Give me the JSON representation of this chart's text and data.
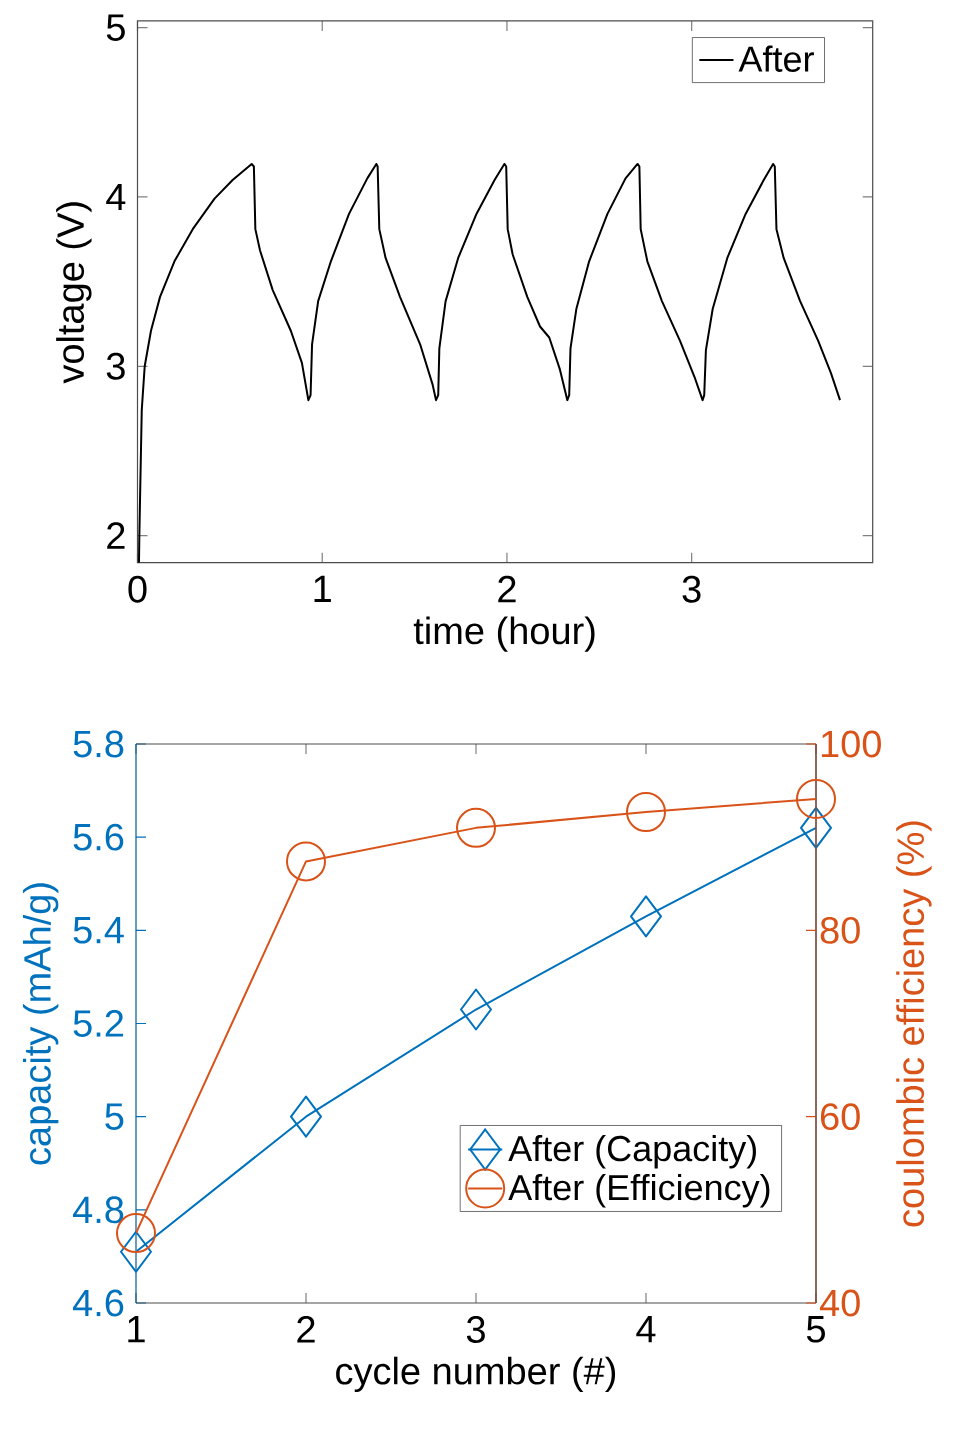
{
  "chart_data": [
    {
      "type": "line",
      "xlabel": "time (hour)",
      "ylabel": "voltage (V)",
      "xlim": [
        0,
        3.98
      ],
      "ylim": [
        1.84,
        5.04
      ],
      "xticks": [
        0,
        1,
        2,
        3
      ],
      "yticks": [
        2,
        3,
        4,
        5
      ],
      "legend": "top right",
      "x": [
        0.008,
        0.01,
        0.023,
        0.039,
        0.073,
        0.122,
        0.2,
        0.299,
        0.417,
        0.515,
        0.618,
        0.63,
        0.638,
        0.663,
        0.732,
        0.83,
        0.89,
        0.925,
        0.937,
        0.945,
        0.978,
        1.047,
        1.145,
        1.244,
        1.293,
        1.3,
        1.309,
        1.343,
        1.421,
        1.53,
        1.598,
        1.616,
        1.628,
        1.634,
        1.668,
        1.736,
        1.835,
        1.933,
        1.986,
        1.996,
        2.004,
        2.031,
        2.11,
        2.179,
        2.229,
        2.287,
        2.327,
        2.337,
        2.344,
        2.376,
        2.445,
        2.544,
        2.642,
        2.707,
        2.717,
        2.724,
        2.76,
        2.839,
        2.937,
        3.016,
        3.059,
        3.068,
        3.077,
        3.114,
        3.193,
        3.292,
        3.39,
        3.441,
        3.45,
        3.459,
        3.498,
        3.587,
        3.685,
        3.754,
        3.803
      ],
      "series": [
        {
          "name": "After",
          "color": "#000000",
          "values": [
            1.84,
            2.0,
            2.74,
            3.0,
            3.21,
            3.41,
            3.62,
            3.81,
            3.99,
            4.1,
            4.195,
            4.18,
            3.81,
            3.685,
            3.45,
            3.21,
            3.02,
            2.8,
            2.83,
            3.13,
            3.385,
            3.62,
            3.9,
            4.11,
            4.195,
            4.18,
            3.81,
            3.64,
            3.41,
            3.13,
            2.89,
            2.8,
            2.83,
            3.106,
            3.385,
            3.64,
            3.9,
            4.1,
            4.195,
            4.18,
            3.81,
            3.66,
            3.41,
            3.235,
            3.17,
            2.98,
            2.8,
            2.83,
            3.106,
            3.34,
            3.62,
            3.9,
            4.11,
            4.195,
            4.18,
            3.81,
            3.62,
            3.385,
            3.15,
            2.935,
            2.8,
            2.83,
            3.095,
            3.34,
            3.64,
            3.9,
            4.1,
            4.195,
            4.18,
            3.81,
            3.64,
            3.385,
            3.15,
            2.96,
            2.8
          ]
        }
      ]
    },
    {
      "type": "line",
      "xlabel": "cycle number (#)",
      "ylabel": "capacity (mAh/g)",
      "y2label": "coulombic efficiency (%)",
      "xlim": [
        1,
        5
      ],
      "ylim": [
        4.6,
        5.8
      ],
      "y2lim": [
        40,
        100
      ],
      "xticks": [
        1,
        2,
        3,
        4,
        5
      ],
      "yticks": [
        4.6,
        4.8,
        5,
        5.2,
        5.4,
        5.6,
        5.8
      ],
      "y2ticks": [
        40,
        60,
        80,
        100
      ],
      "legend": "bottom right",
      "x": [
        1,
        2,
        3,
        4,
        5
      ],
      "series": [
        {
          "name": "After (Capacity)",
          "color": "#0072bd",
          "marker": "diamond",
          "axis": "y",
          "values": [
            4.71,
            5.0,
            5.23,
            5.43,
            5.62
          ]
        },
        {
          "name": "After (Efficiency)",
          "color": "#d95319",
          "marker": "circle",
          "axis": "y2",
          "values": [
            47.5,
            87.4,
            91.0,
            92.7,
            94.1
          ]
        }
      ]
    }
  ]
}
